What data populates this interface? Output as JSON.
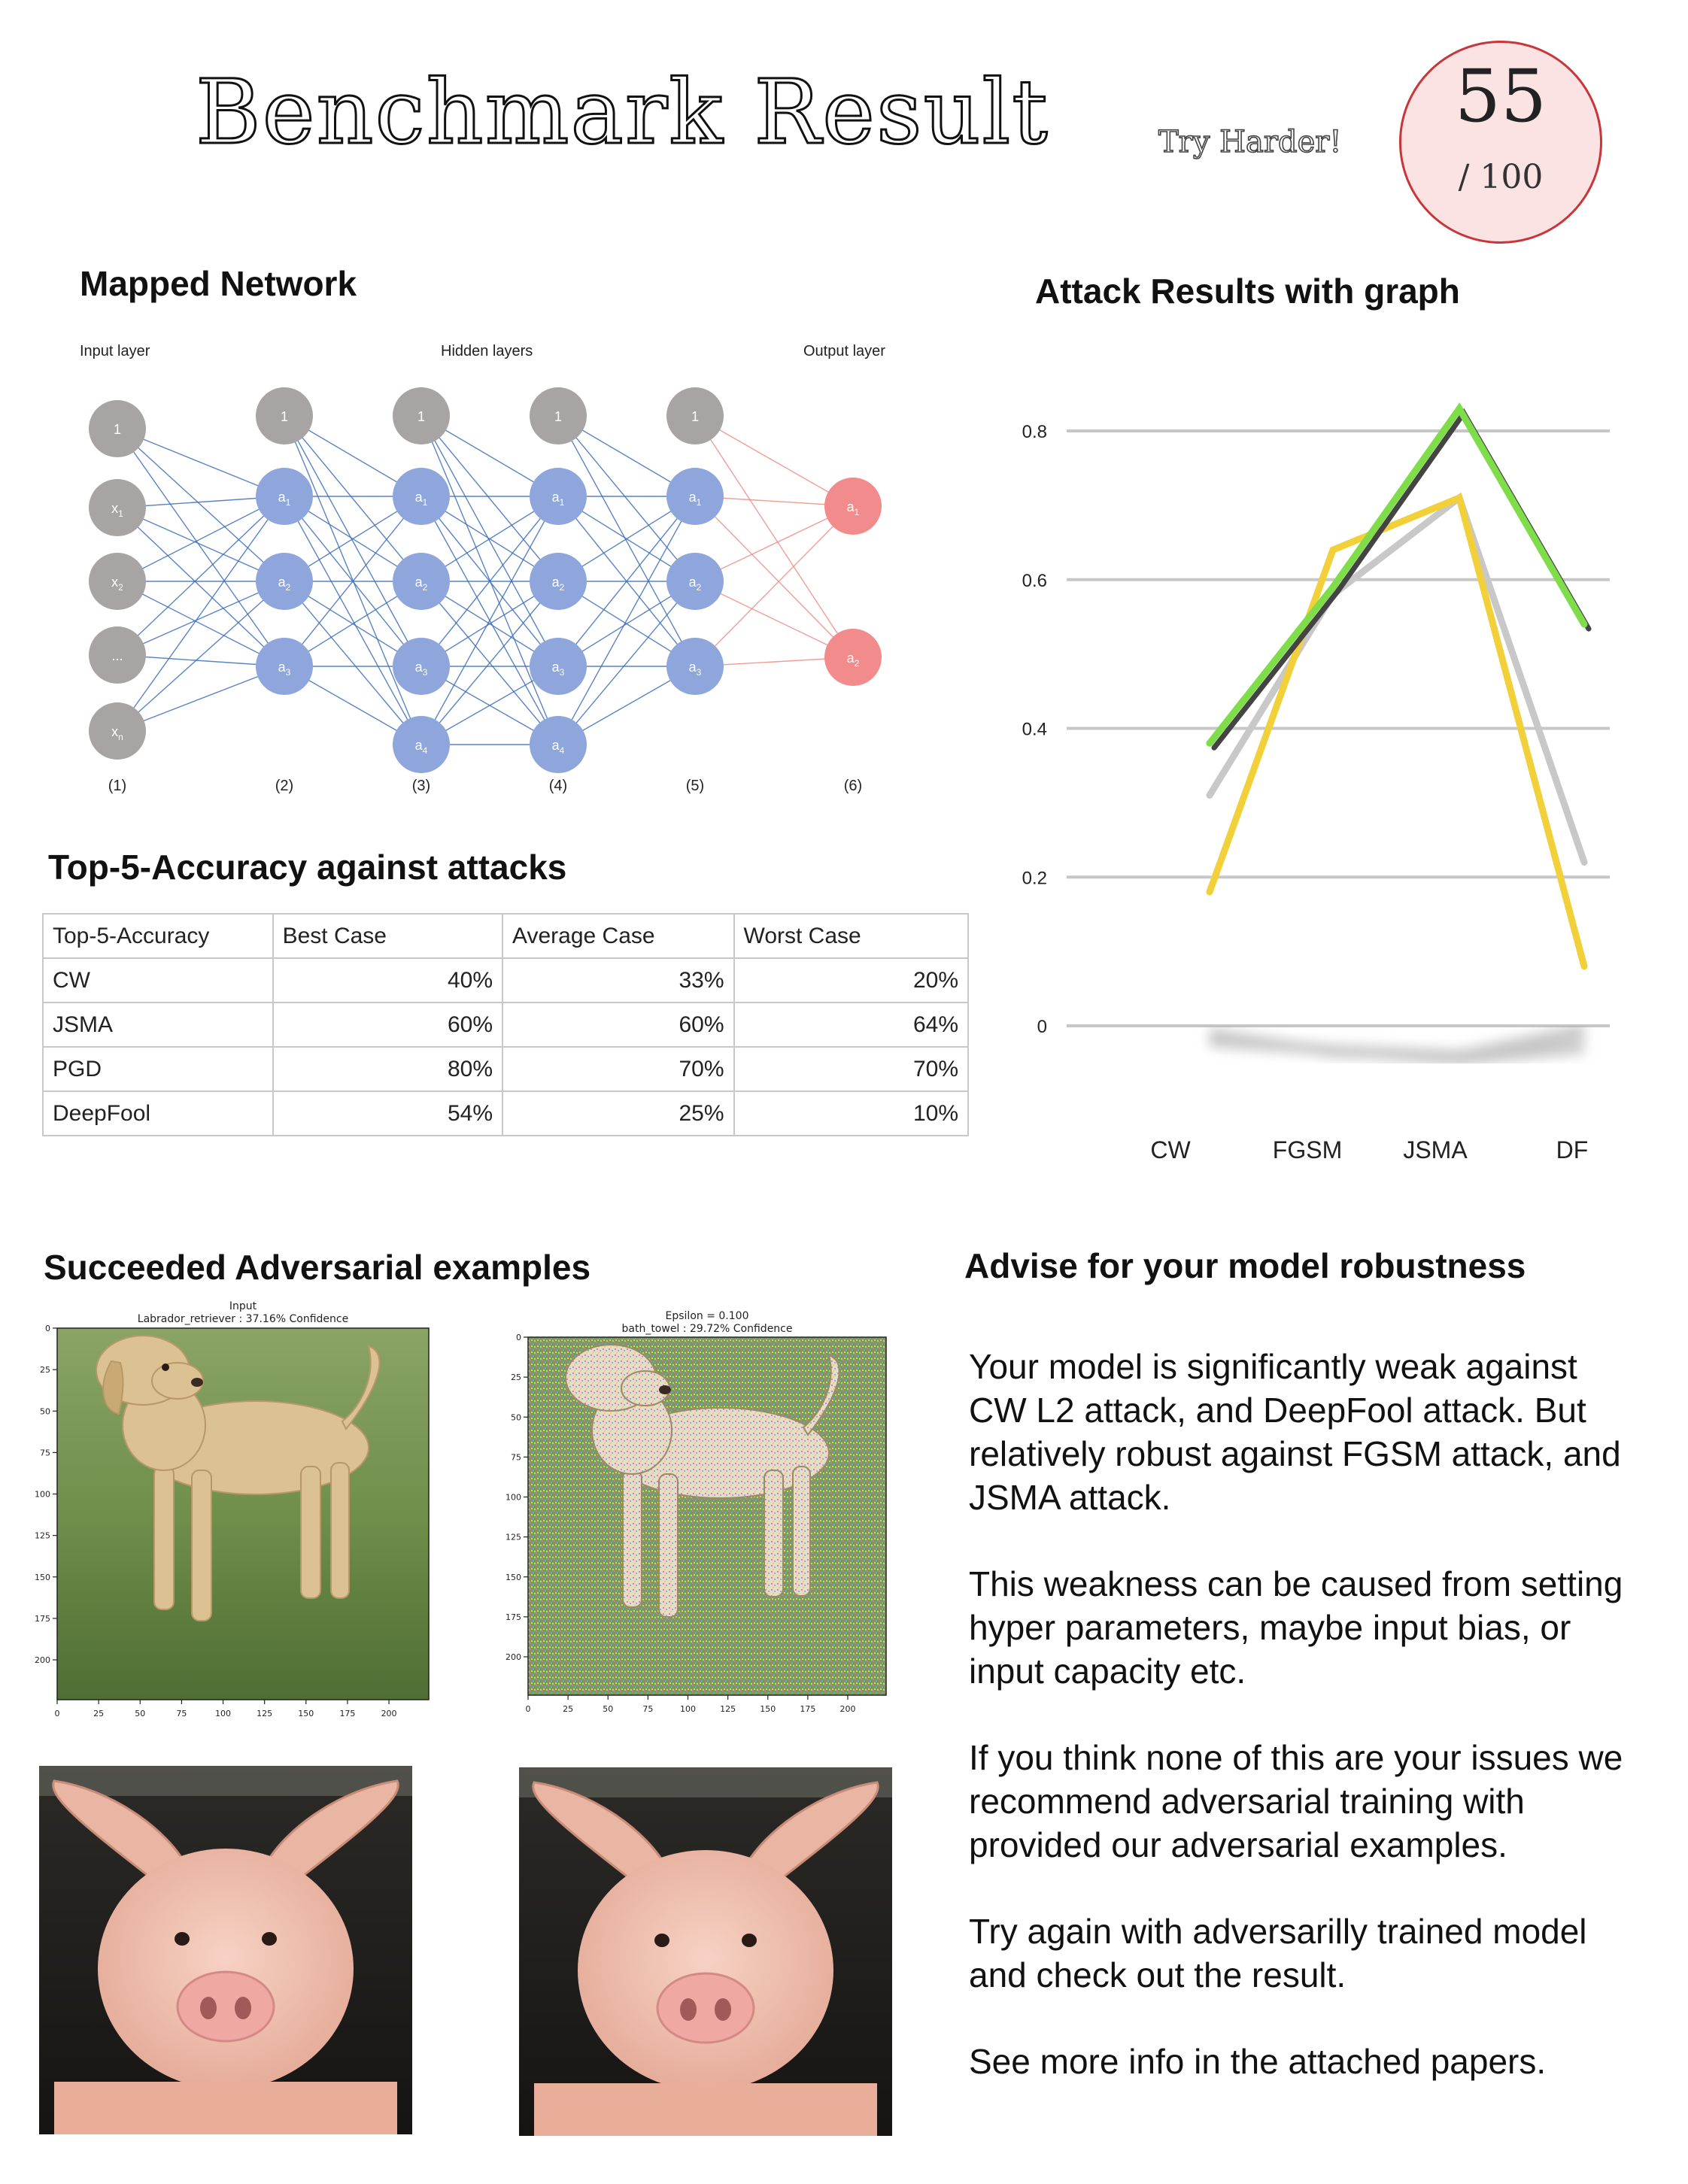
{
  "header": {
    "title": "Benchmark Result",
    "tagline": "Try Harder!",
    "score": "55",
    "score_max": "/ 100"
  },
  "network": {
    "heading": "Mapped Network",
    "layer_labels": {
      "input": "Input layer",
      "hidden": "Hidden layers",
      "output": "Output layer"
    },
    "column_numbers": [
      "(1)",
      "(2)",
      "(3)",
      "(4)",
      "(5)",
      "(6)"
    ],
    "colors": {
      "bias": "#a8a4a4",
      "hidden": "#8ea6dc",
      "output": "#f28b8b",
      "edge_hidden": "#3d6fb8",
      "edge_output": "#ee8d86"
    },
    "nodes": {
      "input": [
        "1",
        "x1",
        "x2",
        "...",
        "xn"
      ],
      "hidden_2": [
        "1",
        "a1",
        "a2",
        "a3"
      ],
      "hidden_3": [
        "1",
        "a1",
        "a2",
        "a3",
        "a4"
      ],
      "hidden_4": [
        "1",
        "a1",
        "a2",
        "a3",
        "a4"
      ],
      "hidden_5": [
        "1",
        "a1",
        "a2",
        "a3"
      ],
      "output": [
        "a1",
        "a2"
      ]
    }
  },
  "graph": {
    "heading": "Attack Results with graph"
  },
  "chart_data": {
    "type": "line",
    "categories": [
      "CW",
      "FGSM",
      "JSMA",
      "DF"
    ],
    "ylim": [
      0,
      0.8
    ],
    "y_ticks": [
      "0.8",
      "0.6",
      "0.4",
      "0.2",
      "0"
    ],
    "grid": true,
    "series": [
      {
        "color": "#7fdd4a",
        "values": [
          0.38,
          0.59,
          0.83,
          0.54
        ]
      },
      {
        "color": "#444444",
        "values": [
          0.38,
          0.59,
          0.83,
          0.54
        ]
      },
      {
        "color": "#c8c8c8",
        "values": [
          0.31,
          0.58,
          0.71,
          0.22
        ]
      },
      {
        "color": "#f2d03a",
        "values": [
          0.18,
          0.64,
          0.71,
          0.08
        ]
      }
    ]
  },
  "accuracy_table": {
    "heading": "Top-5-Accuracy against attacks",
    "columns": [
      "Top-5-Accuracy",
      "Best Case",
      "Average Case",
      "Worst Case"
    ],
    "rows": [
      [
        "CW",
        "40%",
        "33%",
        "20%"
      ],
      [
        "JSMA",
        "60%",
        "60%",
        "64%"
      ],
      [
        "PGD",
        "80%",
        "70%",
        "70%"
      ],
      [
        "DeepFool",
        "54%",
        "25%",
        "10%"
      ]
    ]
  },
  "examples": {
    "heading": "Succeeded Adversarial examples",
    "plot1": {
      "title_line1": "Input",
      "title_line2": "Labrador_retriever : 37.16% Confidence"
    },
    "plot2": {
      "title_line1": "Epsilon = 0.100",
      "title_line2": "bath_towel : 29.72% Confidence"
    },
    "x_ticks": [
      "0",
      "25",
      "50",
      "75",
      "100",
      "125",
      "150",
      "175",
      "200"
    ],
    "y_ticks": [
      "0",
      "25",
      "50",
      "75",
      "100",
      "125",
      "150",
      "175",
      "200"
    ]
  },
  "advice": {
    "heading": "Advise for your model robustness",
    "paragraphs": [
      "Your model is significantly weak against CW L2 attack, and DeepFool attack. But relatively robust  against FGSM attack, and JSMA attack.",
      "This weakness can be caused from setting hyper parameters, maybe input bias, or input capacity etc.",
      "If you think none of this are your issues we recommend adversarial training with provided our adversarial examples.",
      "Try again with adversarilly trained model and check out the result.",
      "See more info in the attached papers."
    ]
  }
}
